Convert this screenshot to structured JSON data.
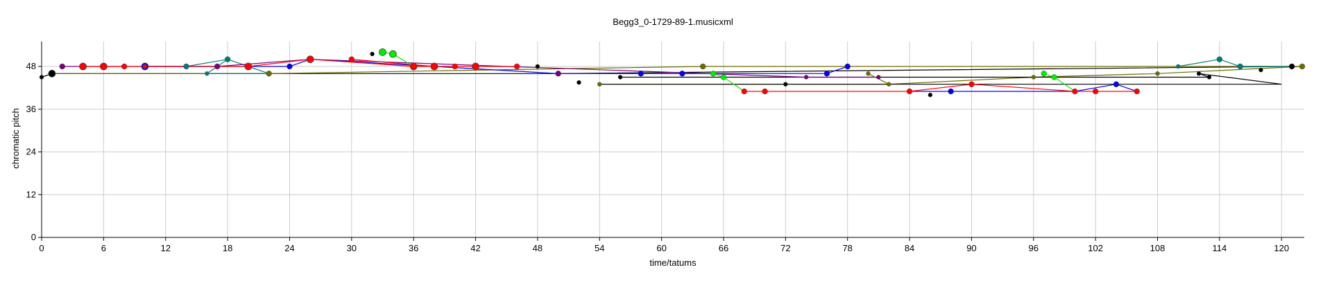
{
  "chart_data": {
    "type": "scatter",
    "title": "Begg3_0-1729-89-1.musicxml",
    "xlabel": "time/tatums",
    "ylabel": "chromatic pitch",
    "xlim": [
      0,
      122.2
    ],
    "ylim": [
      0,
      55
    ],
    "xticks": [
      0,
      6,
      12,
      18,
      24,
      30,
      36,
      42,
      48,
      54,
      60,
      66,
      72,
      78,
      84,
      90,
      96,
      102,
      108,
      114,
      120
    ],
    "yticks": [
      0,
      12,
      24,
      36,
      48
    ],
    "grid": true,
    "colors": {
      "black": "#000000",
      "red": "#ff0000",
      "blue": "#0000ee",
      "teal": "#007b7b",
      "purple": "#7b007b",
      "olive": "#6b6b00",
      "green": "#00ee00"
    },
    "lines": [
      {
        "color": "black",
        "points": [
          [
            0,
            45
          ],
          [
            1,
            46
          ],
          [
            50,
            46
          ],
          [
            121,
            48
          ]
        ]
      },
      {
        "color": "olive",
        "points": [
          [
            1,
            46
          ],
          [
            22,
            46
          ],
          [
            64,
            48
          ],
          [
            122,
            48
          ]
        ]
      },
      {
        "color": "olive",
        "points": [
          [
            54,
            43
          ],
          [
            82,
            43
          ],
          [
            96,
            45
          ],
          [
            108,
            46
          ],
          [
            122,
            48
          ]
        ]
      },
      {
        "color": "black",
        "points": [
          [
            54,
            43
          ],
          [
            120,
            43
          ],
          [
            112,
            46
          ],
          [
            113,
            45
          ],
          [
            56,
            45
          ]
        ]
      },
      {
        "color": "teal",
        "points": [
          [
            10,
            48
          ],
          [
            14,
            48
          ],
          [
            18,
            50
          ],
          [
            20,
            48
          ],
          [
            22,
            46
          ],
          [
            16,
            46
          ],
          [
            18,
            50
          ]
        ]
      },
      {
        "color": "teal",
        "points": [
          [
            110,
            48
          ],
          [
            114,
            50
          ],
          [
            116,
            48
          ],
          [
            121,
            48
          ]
        ]
      },
      {
        "color": "purple",
        "points": [
          [
            2,
            48
          ],
          [
            17,
            48
          ],
          [
            26,
            50
          ],
          [
            74,
            45
          ],
          [
            81,
            45
          ]
        ]
      },
      {
        "color": "blue",
        "points": [
          [
            10,
            48
          ],
          [
            24,
            48
          ],
          [
            26,
            50
          ],
          [
            50,
            46
          ],
          [
            58,
            46
          ],
          [
            62,
            46
          ],
          [
            76,
            46
          ],
          [
            78,
            48
          ]
        ]
      },
      {
        "color": "blue",
        "points": [
          [
            84,
            41
          ],
          [
            88,
            41
          ],
          [
            100,
            41
          ],
          [
            104,
            43
          ],
          [
            106,
            41
          ]
        ]
      },
      {
        "color": "red",
        "points": [
          [
            4,
            48
          ],
          [
            20,
            48
          ],
          [
            26,
            50
          ],
          [
            36,
            48
          ],
          [
            46,
            48
          ]
        ]
      },
      {
        "color": "red",
        "points": [
          [
            30,
            50
          ],
          [
            38,
            48
          ]
        ]
      },
      {
        "color": "red",
        "points": [
          [
            68,
            41
          ],
          [
            70,
            41
          ],
          [
            84,
            41
          ],
          [
            90,
            43
          ],
          [
            100,
            41
          ],
          [
            102,
            41
          ],
          [
            106,
            41
          ]
        ]
      },
      {
        "color": "green",
        "points": [
          [
            33,
            52
          ],
          [
            34,
            51.5
          ],
          [
            36,
            48
          ]
        ]
      },
      {
        "color": "green",
        "points": [
          [
            65,
            46
          ],
          [
            66,
            45
          ],
          [
            68,
            41
          ]
        ]
      },
      {
        "color": "green",
        "points": [
          [
            97,
            46
          ],
          [
            98,
            45
          ],
          [
            100,
            41
          ]
        ]
      },
      {
        "color": "olive",
        "points": [
          [
            80,
            46
          ],
          [
            82,
            43
          ]
        ]
      }
    ],
    "points": [
      {
        "x": 0,
        "y": 45,
        "color": "black",
        "size": 3
      },
      {
        "x": 1,
        "y": 46,
        "color": "black",
        "size": 5
      },
      {
        "x": 2,
        "y": 48,
        "color": "purple",
        "size": 4
      },
      {
        "x": 4,
        "y": 48,
        "color": "red",
        "size": 5
      },
      {
        "x": 6,
        "y": 48,
        "color": "red",
        "size": 5
      },
      {
        "x": 8,
        "y": 48,
        "color": "red",
        "size": 4
      },
      {
        "x": 10,
        "y": 48,
        "color": "blue",
        "size": 5
      },
      {
        "x": 10,
        "y": 48,
        "color": "red",
        "size": 3
      },
      {
        "x": 14,
        "y": 48,
        "color": "teal",
        "size": 4
      },
      {
        "x": 16,
        "y": 46,
        "color": "teal",
        "size": 3
      },
      {
        "x": 17,
        "y": 48,
        "color": "purple",
        "size": 4
      },
      {
        "x": 18,
        "y": 50,
        "color": "teal",
        "size": 4
      },
      {
        "x": 20,
        "y": 48,
        "color": "red",
        "size": 5
      },
      {
        "x": 22,
        "y": 46,
        "color": "olive",
        "size": 4
      },
      {
        "x": 24,
        "y": 48,
        "color": "blue",
        "size": 4
      },
      {
        "x": 26,
        "y": 50,
        "color": "red",
        "size": 5
      },
      {
        "x": 30,
        "y": 50,
        "color": "red",
        "size": 4
      },
      {
        "x": 32,
        "y": 51.5,
        "color": "black",
        "size": 3
      },
      {
        "x": 33,
        "y": 52,
        "color": "green",
        "size": 5
      },
      {
        "x": 34,
        "y": 51.5,
        "color": "green",
        "size": 5
      },
      {
        "x": 36,
        "y": 48,
        "color": "red",
        "size": 5
      },
      {
        "x": 38,
        "y": 48,
        "color": "red",
        "size": 5
      },
      {
        "x": 40,
        "y": 48,
        "color": "red",
        "size": 4
      },
      {
        "x": 42,
        "y": 48,
        "color": "red",
        "size": 5
      },
      {
        "x": 46,
        "y": 48,
        "color": "red",
        "size": 4
      },
      {
        "x": 48,
        "y": 48,
        "color": "black",
        "size": 3
      },
      {
        "x": 50,
        "y": 46,
        "color": "purple",
        "size": 4
      },
      {
        "x": 52,
        "y": 43.5,
        "color": "black",
        "size": 3
      },
      {
        "x": 54,
        "y": 43,
        "color": "olive",
        "size": 3
      },
      {
        "x": 56,
        "y": 45,
        "color": "black",
        "size": 3
      },
      {
        "x": 58,
        "y": 46,
        "color": "blue",
        "size": 4
      },
      {
        "x": 62,
        "y": 46,
        "color": "blue",
        "size": 4
      },
      {
        "x": 64,
        "y": 48,
        "color": "olive",
        "size": 4
      },
      {
        "x": 65,
        "y": 46,
        "color": "green",
        "size": 4
      },
      {
        "x": 66,
        "y": 45,
        "color": "green",
        "size": 4
      },
      {
        "x": 68,
        "y": 41,
        "color": "red",
        "size": 4
      },
      {
        "x": 70,
        "y": 41,
        "color": "red",
        "size": 4
      },
      {
        "x": 72,
        "y": 43,
        "color": "black",
        "size": 3
      },
      {
        "x": 74,
        "y": 45,
        "color": "purple",
        "size": 3
      },
      {
        "x": 76,
        "y": 46,
        "color": "blue",
        "size": 4
      },
      {
        "x": 78,
        "y": 48,
        "color": "blue",
        "size": 4
      },
      {
        "x": 80,
        "y": 46,
        "color": "olive",
        "size": 3
      },
      {
        "x": 81,
        "y": 45,
        "color": "purple",
        "size": 3
      },
      {
        "x": 82,
        "y": 43,
        "color": "olive",
        "size": 3
      },
      {
        "x": 84,
        "y": 41,
        "color": "red",
        "size": 4
      },
      {
        "x": 86,
        "y": 40,
        "color": "black",
        "size": 3
      },
      {
        "x": 88,
        "y": 41,
        "color": "blue",
        "size": 4
      },
      {
        "x": 90,
        "y": 43,
        "color": "red",
        "size": 4
      },
      {
        "x": 96,
        "y": 45,
        "color": "olive",
        "size": 3
      },
      {
        "x": 97,
        "y": 46,
        "color": "green",
        "size": 4
      },
      {
        "x": 98,
        "y": 45,
        "color": "green",
        "size": 4
      },
      {
        "x": 100,
        "y": 41,
        "color": "red",
        "size": 4
      },
      {
        "x": 102,
        "y": 41,
        "color": "red",
        "size": 4
      },
      {
        "x": 104,
        "y": 43,
        "color": "blue",
        "size": 4
      },
      {
        "x": 106,
        "y": 41,
        "color": "red",
        "size": 4
      },
      {
        "x": 108,
        "y": 46,
        "color": "olive",
        "size": 3
      },
      {
        "x": 110,
        "y": 48,
        "color": "teal",
        "size": 3
      },
      {
        "x": 112,
        "y": 46,
        "color": "black",
        "size": 3
      },
      {
        "x": 113,
        "y": 45,
        "color": "black",
        "size": 3
      },
      {
        "x": 114,
        "y": 50,
        "color": "teal",
        "size": 4
      },
      {
        "x": 116,
        "y": 48,
        "color": "teal",
        "size": 4
      },
      {
        "x": 118,
        "y": 47,
        "color": "black",
        "size": 3
      },
      {
        "x": 121,
        "y": 48,
        "color": "black",
        "size": 4
      },
      {
        "x": 122,
        "y": 48,
        "color": "olive",
        "size": 4
      }
    ]
  }
}
